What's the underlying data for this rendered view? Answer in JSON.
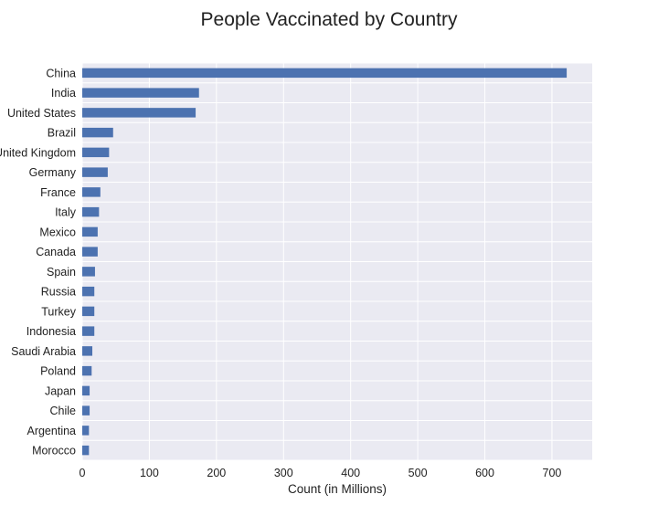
{
  "chart_data": {
    "type": "bar",
    "orientation": "horizontal",
    "title": "People Vaccinated by Country",
    "xlabel": "Count (in Millions)",
    "ylabel": "",
    "xlim": [
      0,
      760
    ],
    "xticks": [
      0,
      100,
      200,
      300,
      400,
      500,
      600,
      700
    ],
    "grid": true,
    "categories": [
      "China",
      "India",
      "United States",
      "Brazil",
      "United Kingdom",
      "Germany",
      "France",
      "Italy",
      "Mexico",
      "Canada",
      "Spain",
      "Russia",
      "Turkey",
      "Indonesia",
      "Saudi Arabia",
      "Poland",
      "Japan",
      "Chile",
      "Argentina",
      "Morocco"
    ],
    "values": [
      722,
      174,
      169,
      46,
      40,
      38,
      27,
      25,
      23,
      23,
      19,
      18,
      18,
      18,
      15,
      14,
      11,
      11,
      10,
      10
    ],
    "colors": {
      "bar": "#4c72b0",
      "plot_background": "#eaeaf2",
      "grid": "#ffffff",
      "text": "#222222"
    }
  }
}
